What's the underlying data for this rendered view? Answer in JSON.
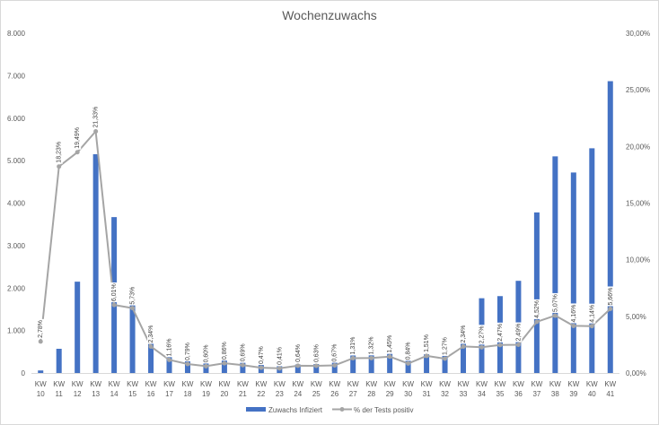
{
  "chart_data": {
    "type": "bar",
    "title": "Wochenzuwachs",
    "categories": [
      [
        "KW",
        "10"
      ],
      [
        "KW",
        "11"
      ],
      [
        "KW",
        "12"
      ],
      [
        "KW",
        "13"
      ],
      [
        "KW",
        "14"
      ],
      [
        "KW",
        "15"
      ],
      [
        "KW",
        "16"
      ],
      [
        "KW",
        "17"
      ],
      [
        "KW",
        "18"
      ],
      [
        "KW",
        "19"
      ],
      [
        "KW",
        "20"
      ],
      [
        "KW",
        "21"
      ],
      [
        "KW",
        "22"
      ],
      [
        "KW",
        "23"
      ],
      [
        "KW",
        "24"
      ],
      [
        "KW",
        "25"
      ],
      [
        "KW",
        "26"
      ],
      [
        "KW",
        "27"
      ],
      [
        "KW",
        "28"
      ],
      [
        "KW",
        "29"
      ],
      [
        "KW",
        "30"
      ],
      [
        "KW",
        "31"
      ],
      [
        "KW",
        "32"
      ],
      [
        "KW",
        "33"
      ],
      [
        "KW",
        "34"
      ],
      [
        "KW",
        "35"
      ],
      [
        "KW",
        "36"
      ],
      [
        "KW",
        "37"
      ],
      [
        "KW",
        "38"
      ],
      [
        "KW",
        "39"
      ],
      [
        "KW",
        "40"
      ],
      [
        "KW",
        "41"
      ]
    ],
    "series": [
      {
        "name": "Zuwachs Infiziert",
        "type": "bar",
        "axis": "left",
        "color": "#4472C4",
        "values": [
          60,
          570,
          2150,
          5150,
          3670,
          1650,
          760,
          450,
          320,
          260,
          330,
          240,
          200,
          160,
          200,
          210,
          280,
          470,
          480,
          480,
          320,
          440,
          440,
          740,
          1760,
          1810,
          2170,
          3780,
          5100,
          4720,
          5290,
          6870
        ]
      },
      {
        "name": "% der Tests positiv",
        "type": "line",
        "axis": "right",
        "color": "#A5A5A5",
        "values": [
          2.78,
          18.23,
          19.49,
          21.33,
          6.01,
          5.73,
          2.34,
          1.16,
          0.79,
          0.6,
          0.86,
          0.69,
          0.47,
          0.41,
          0.64,
          0.63,
          0.67,
          1.31,
          1.32,
          1.45,
          0.84,
          1.51,
          1.27,
          2.34,
          2.27,
          2.47,
          2.49,
          4.52,
          5.07,
          4.16,
          4.14,
          5.66
        ],
        "labels": [
          "2,78%",
          "18,23%",
          "19,49%",
          "21,33%",
          "6,01%",
          "5,73%",
          "2,34%",
          "1,16%",
          "0,79%",
          "0,60%",
          "0,86%",
          "0,69%",
          "0,47%",
          "0,41%",
          "0,64%",
          "0,63%",
          "0,67%",
          "1,31%",
          "1,32%",
          "1,45%",
          "0,84%",
          "1,51%",
          "1,27%",
          "2,34%",
          "2,27%",
          "2,47%",
          "2,49%",
          "4,52%",
          "5,07%",
          "4,16%",
          "4,14%",
          "5,66%"
        ]
      }
    ],
    "y_left": {
      "ylim": [
        0,
        8000
      ],
      "ticks": [
        0,
        1000,
        2000,
        3000,
        4000,
        5000,
        6000,
        7000,
        8000
      ],
      "tick_labels": [
        "0",
        "1.000",
        "2.000",
        "3.000",
        "4.000",
        "5.000",
        "6.000",
        "7.000",
        "8.000"
      ]
    },
    "y_right": {
      "ylim": [
        0,
        30
      ],
      "ticks": [
        0,
        5,
        10,
        15,
        20,
        25,
        30
      ],
      "tick_labels": [
        "0,00%",
        "5,00%",
        "10,00%",
        "15,00%",
        "20,00%",
        "25,00%",
        "30,00%"
      ]
    },
    "grid": false,
    "legend": "bottom"
  }
}
